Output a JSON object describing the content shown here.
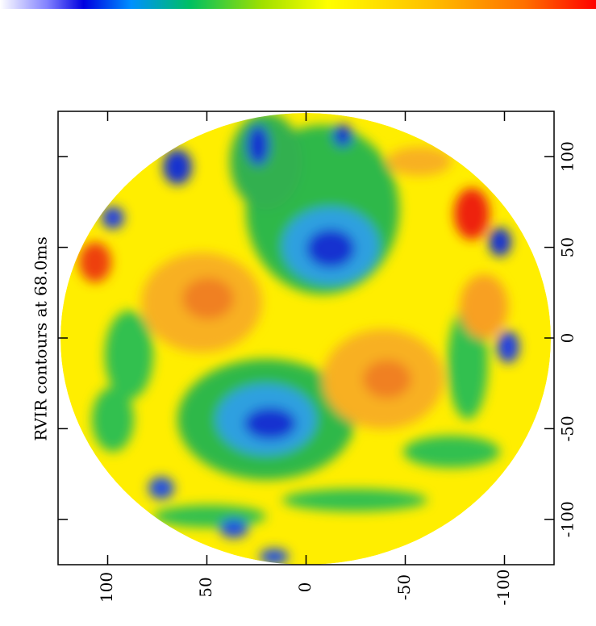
{
  "chart_data": {
    "type": "contour",
    "title": "RVIR contours  at 68.0ms",
    "xlim": [
      -125,
      125
    ],
    "xticks": [
      -100,
      -50,
      0,
      50,
      100
    ],
    "ylim": [
      -125,
      125
    ],
    "yticks": [
      -100,
      -50,
      0,
      50,
      100
    ]
  }
}
